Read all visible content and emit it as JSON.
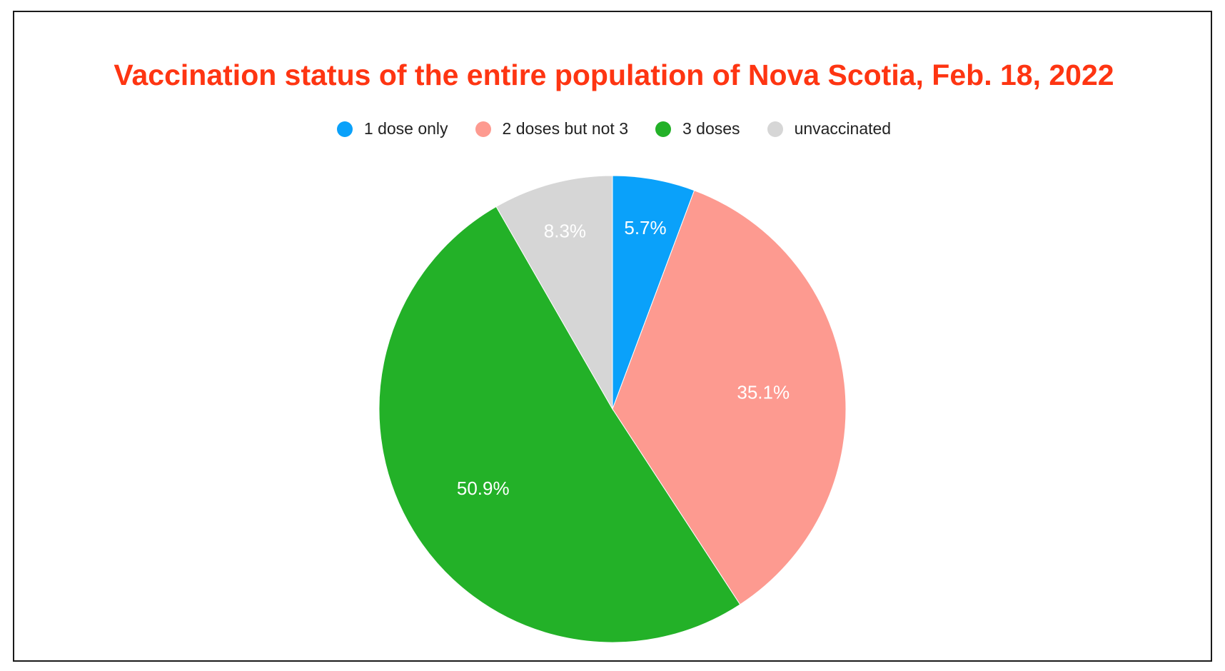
{
  "chart_data": {
    "type": "pie",
    "title": "Vaccination status of the entire population of Nova Scotia, Feb. 18, 2022",
    "categories": [
      "1 dose only",
      "2 doses but not 3",
      "3 doses",
      "unvaccinated"
    ],
    "values": [
      5.7,
      35.1,
      50.9,
      8.3
    ],
    "value_labels": [
      "5.7%",
      "35.1%",
      "50.9%",
      "8.3%"
    ],
    "colors": [
      "#0aa1fa",
      "#fd9a90",
      "#23b128",
      "#d6d6d6"
    ],
    "title_color": "#fe3512",
    "legend_position": "top-center",
    "start_angle": "12 o'clock",
    "direction": "clockwise"
  }
}
